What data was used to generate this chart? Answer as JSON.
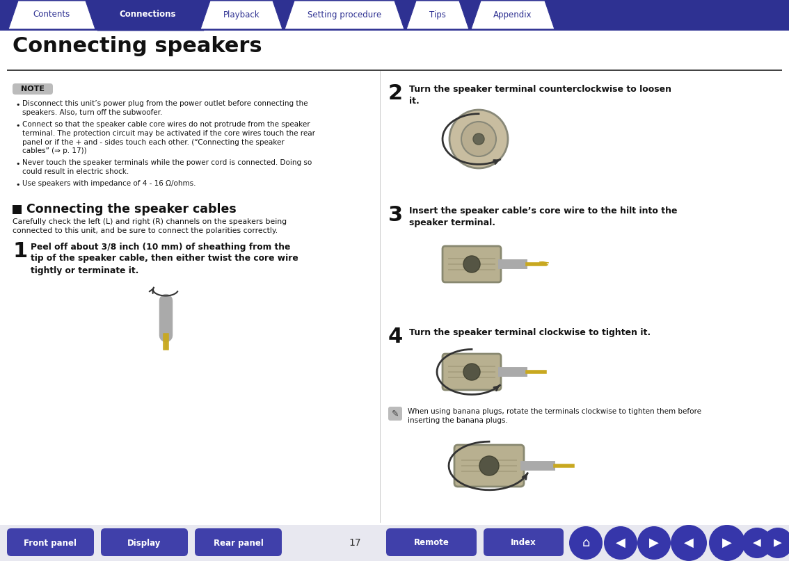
{
  "bg_color": "#ffffff",
  "nav_bar_color": "#2e3192",
  "nav_bar_line_color": "#2e3192",
  "nav_tabs": [
    "Contents",
    "Connections",
    "Playback",
    "Setting procedure",
    "Tips",
    "Appendix"
  ],
  "nav_active": 1,
  "nav_active_color": "#2e3192",
  "nav_inactive_bg": "#ffffff",
  "nav_text_active_color": "#ffffff",
  "nav_text_inactive_color": "#2e3192",
  "page_title": "Connecting speakers",
  "note_label": "NOTE",
  "note_bg": "#bbbbbb",
  "note_items": [
    "Disconnect this unit’s power plug from the power outlet before connecting the\nspeakers. Also, turn off the subwoofer.",
    "Connect so that the speaker cable core wires do not protrude from the speaker\nterminal. The protection circuit may be activated if the core wires touch the rear\npanel or if the + and - sides touch each other. (“Connecting the speaker\ncables” (⇒ p. 17))",
    "Never touch the speaker terminals while the power cord is connected. Doing so\ncould result in electric shock.",
    "Use speakers with impedance of 4 - 16 Ω/ohms."
  ],
  "section_title": "Connecting the speaker cables",
  "section_intro": "Carefully check the left (L) and right (R) channels on the speakers being\nconnected to this unit, and be sure to connect the polarities correctly.",
  "steps_left": [
    {
      "num": "1",
      "bold": true,
      "text": "Peel off about 3/8 inch (10 mm) of sheathing from the\ntip of the speaker cable, then either twist the core wire\ntightly or terminate it."
    }
  ],
  "steps_right": [
    {
      "num": "2",
      "bold": true,
      "text": "Turn the speaker terminal counterclockwise to loosen\nit."
    },
    {
      "num": "3",
      "bold": true,
      "text": "Insert the speaker cable’s core wire to the hilt into the\nspeaker terminal."
    },
    {
      "num": "4",
      "bold": true,
      "text": "Turn the speaker terminal clockwise to tighten it."
    }
  ],
  "tip_text": "When using banana plugs, rotate the terminals clockwise to tighten them before\ninserting the banana plugs.",
  "bottom_nav": [
    "Front panel",
    "Display",
    "Rear panel",
    "Remote",
    "Index"
  ],
  "page_number": "17",
  "bottom_btn_color": "#4040aa",
  "bottom_btn_text_color": "#ffffff",
  "divider_color": "#999999"
}
